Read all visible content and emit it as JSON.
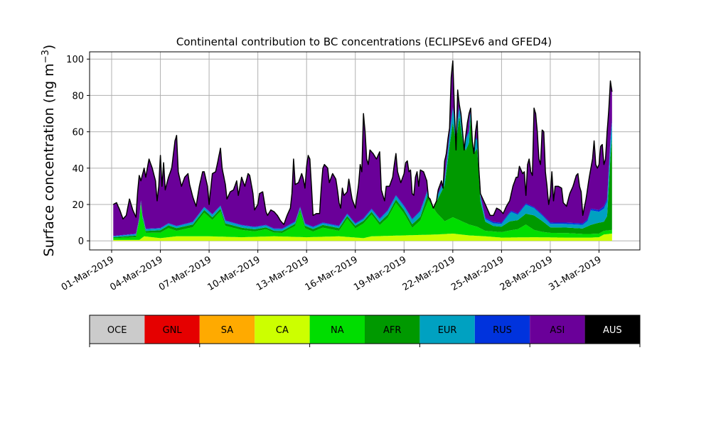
{
  "chart_data": {
    "type": "area",
    "stacked": true,
    "title": "Continental contribution to BC concentrations (ECLIPSEv6 and GFED4)",
    "ylabel_main": "Surface concentration (ng m",
    "ylabel_sup": "−3",
    "ylabel_close": ")",
    "xlabel": "",
    "ylim": [
      -5,
      104
    ],
    "yticks": [
      0,
      20,
      40,
      60,
      80,
      100
    ],
    "x_start": "2019-03-01",
    "x_end": "2019-04-01",
    "xtick_labels": [
      "01-Mar-2019",
      "04-Mar-2019",
      "07-Mar-2019",
      "10-Mar-2019",
      "13-Mar-2019",
      "16-Mar-2019",
      "19-Mar-2019",
      "22-Mar-2019",
      "25-Mar-2019",
      "28-Mar-2019",
      "31-Mar-2019"
    ],
    "xtick_days": [
      0,
      3,
      6,
      9,
      12,
      15,
      18,
      21,
      24,
      27,
      30
    ],
    "grid": true,
    "series_names": [
      "OCE",
      "GNL",
      "SA",
      "CA",
      "NA",
      "AFR",
      "EUR",
      "RUS",
      "ASI",
      "AUS"
    ],
    "series_colors": [
      "#cbcbcb",
      "#e50000",
      "#ffaa00",
      "#ccff00",
      "#00dd00",
      "#009900",
      "#00a1c1",
      "#0033dd",
      "#6a0099",
      "#000000"
    ],
    "series_text_colors": [
      "#000000",
      "#000000",
      "#000000",
      "#000000",
      "#000000",
      "#000000",
      "#000000",
      "#000000",
      "#000000",
      "#ffffff"
    ],
    "total_keyframes": [
      [
        0.1,
        20
      ],
      [
        0.3,
        21
      ],
      [
        0.5,
        17
      ],
      [
        0.7,
        12
      ],
      [
        0.9,
        14
      ],
      [
        1.1,
        23
      ],
      [
        1.3,
        17
      ],
      [
        1.5,
        13
      ],
      [
        1.6,
        27
      ],
      [
        1.7,
        36
      ],
      [
        1.8,
        33
      ],
      [
        2.0,
        40
      ],
      [
        2.1,
        35
      ],
      [
        2.3,
        45
      ],
      [
        2.5,
        40
      ],
      [
        2.7,
        33
      ],
      [
        2.8,
        22
      ],
      [
        2.9,
        30
      ],
      [
        3.0,
        47
      ],
      [
        3.1,
        30
      ],
      [
        3.2,
        43
      ],
      [
        3.3,
        28
      ],
      [
        3.5,
        35
      ],
      [
        3.7,
        40
      ],
      [
        3.9,
        55
      ],
      [
        4.0,
        58
      ],
      [
        4.1,
        38
      ],
      [
        4.3,
        30
      ],
      [
        4.5,
        35
      ],
      [
        4.7,
        37
      ],
      [
        4.8,
        31
      ],
      [
        5.0,
        24
      ],
      [
        5.2,
        19
      ],
      [
        5.4,
        30
      ],
      [
        5.6,
        38
      ],
      [
        5.7,
        38
      ],
      [
        5.9,
        30
      ],
      [
        6.0,
        20
      ],
      [
        6.2,
        37
      ],
      [
        6.4,
        38
      ],
      [
        6.5,
        42
      ],
      [
        6.7,
        51
      ],
      [
        6.8,
        40
      ],
      [
        7.0,
        31
      ],
      [
        7.1,
        23
      ],
      [
        7.3,
        27
      ],
      [
        7.5,
        28
      ],
      [
        7.7,
        33
      ],
      [
        7.8,
        25
      ],
      [
        8.0,
        35
      ],
      [
        8.2,
        30
      ],
      [
        8.4,
        37
      ],
      [
        8.5,
        36
      ],
      [
        8.7,
        26
      ],
      [
        8.8,
        17
      ],
      [
        9.0,
        20
      ],
      [
        9.1,
        26
      ],
      [
        9.3,
        27
      ],
      [
        9.5,
        16
      ],
      [
        9.6,
        14
      ],
      [
        9.8,
        17
      ],
      [
        10.0,
        16
      ],
      [
        10.2,
        14
      ],
      [
        10.4,
        11
      ],
      [
        10.6,
        9
      ],
      [
        10.8,
        14
      ],
      [
        11.0,
        18
      ],
      [
        11.1,
        26
      ],
      [
        11.2,
        45
      ],
      [
        11.3,
        31
      ],
      [
        11.5,
        32
      ],
      [
        11.7,
        37
      ],
      [
        11.8,
        34
      ],
      [
        11.9,
        29
      ],
      [
        12.0,
        41
      ],
      [
        12.1,
        47
      ],
      [
        12.2,
        45
      ],
      [
        12.3,
        30
      ],
      [
        12.4,
        14
      ],
      [
        12.6,
        15
      ],
      [
        12.8,
        15
      ],
      [
        12.9,
        29
      ],
      [
        13.0,
        40
      ],
      [
        13.1,
        42
      ],
      [
        13.3,
        40
      ],
      [
        13.4,
        32
      ],
      [
        13.6,
        37
      ],
      [
        13.8,
        34
      ],
      [
        13.9,
        28
      ],
      [
        14.0,
        21
      ],
      [
        14.1,
        18
      ],
      [
        14.2,
        29
      ],
      [
        14.3,
        25
      ],
      [
        14.5,
        27
      ],
      [
        14.6,
        34
      ],
      [
        14.8,
        23
      ],
      [
        15.0,
        18
      ],
      [
        15.2,
        31
      ],
      [
        15.3,
        42
      ],
      [
        15.4,
        38
      ],
      [
        15.5,
        70
      ],
      [
        15.6,
        60
      ],
      [
        15.7,
        45
      ],
      [
        15.8,
        42
      ],
      [
        15.9,
        50
      ],
      [
        16.1,
        48
      ],
      [
        16.3,
        45
      ],
      [
        16.5,
        49
      ],
      [
        16.6,
        28
      ],
      [
        16.8,
        22
      ],
      [
        16.9,
        30
      ],
      [
        17.1,
        30
      ],
      [
        17.3,
        35
      ],
      [
        17.4,
        42
      ],
      [
        17.5,
        48
      ],
      [
        17.6,
        38
      ],
      [
        17.8,
        32
      ],
      [
        18.0,
        37
      ],
      [
        18.1,
        43
      ],
      [
        18.2,
        44
      ],
      [
        18.3,
        38
      ],
      [
        18.4,
        39
      ],
      [
        18.5,
        26
      ],
      [
        18.6,
        25
      ],
      [
        18.7,
        35
      ],
      [
        18.8,
        38
      ],
      [
        18.9,
        30
      ],
      [
        19.0,
        39
      ],
      [
        19.2,
        38
      ],
      [
        19.4,
        33
      ],
      [
        19.5,
        24
      ],
      [
        19.6,
        23
      ],
      [
        19.8,
        18
      ],
      [
        20.0,
        22
      ],
      [
        20.1,
        28
      ],
      [
        20.3,
        33
      ],
      [
        20.4,
        29
      ],
      [
        20.5,
        44
      ],
      [
        20.6,
        48
      ],
      [
        20.7,
        56
      ],
      [
        20.8,
        62
      ],
      [
        20.9,
        90
      ],
      [
        21.0,
        99
      ],
      [
        21.1,
        72
      ],
      [
        21.2,
        50
      ],
      [
        21.3,
        83
      ],
      [
        21.4,
        75
      ],
      [
        21.5,
        70
      ],
      [
        21.6,
        60
      ],
      [
        21.7,
        50
      ],
      [
        21.8,
        58
      ],
      [
        21.9,
        65
      ],
      [
        22.0,
        70
      ],
      [
        22.1,
        73
      ],
      [
        22.2,
        55
      ],
      [
        22.3,
        48
      ],
      [
        22.4,
        60
      ],
      [
        22.5,
        66
      ],
      [
        22.6,
        40
      ],
      [
        22.7,
        26
      ],
      [
        22.9,
        22
      ],
      [
        23.1,
        18
      ],
      [
        23.3,
        14
      ],
      [
        23.5,
        14
      ],
      [
        23.7,
        18
      ],
      [
        23.9,
        17
      ],
      [
        24.1,
        15
      ],
      [
        24.3,
        19
      ],
      [
        24.5,
        22
      ],
      [
        24.7,
        30
      ],
      [
        24.9,
        35
      ],
      [
        25.0,
        35
      ],
      [
        25.1,
        41
      ],
      [
        25.3,
        37
      ],
      [
        25.4,
        38
      ],
      [
        25.5,
        25
      ],
      [
        25.6,
        42
      ],
      [
        25.7,
        45
      ],
      [
        25.8,
        38
      ],
      [
        25.9,
        36
      ],
      [
        26.0,
        73
      ],
      [
        26.1,
        70
      ],
      [
        26.2,
        60
      ],
      [
        26.3,
        45
      ],
      [
        26.4,
        42
      ],
      [
        26.5,
        61
      ],
      [
        26.6,
        60
      ],
      [
        26.7,
        38
      ],
      [
        26.8,
        30
      ],
      [
        26.9,
        20
      ],
      [
        27.0,
        25
      ],
      [
        27.1,
        38
      ],
      [
        27.2,
        22
      ],
      [
        27.3,
        30
      ],
      [
        27.5,
        30
      ],
      [
        27.7,
        29
      ],
      [
        27.8,
        21
      ],
      [
        28.0,
        19
      ],
      [
        28.2,
        26
      ],
      [
        28.4,
        30
      ],
      [
        28.6,
        36
      ],
      [
        28.7,
        37
      ],
      [
        28.8,
        30
      ],
      [
        28.9,
        27
      ],
      [
        29.0,
        14
      ],
      [
        29.2,
        23
      ],
      [
        29.4,
        35
      ],
      [
        29.6,
        45
      ],
      [
        29.7,
        55
      ],
      [
        29.8,
        42
      ],
      [
        29.9,
        40
      ],
      [
        30.0,
        42
      ],
      [
        30.1,
        52
      ],
      [
        30.2,
        53
      ],
      [
        30.3,
        42
      ],
      [
        30.4,
        45
      ],
      [
        30.5,
        60
      ],
      [
        30.6,
        72
      ],
      [
        30.7,
        88
      ],
      [
        30.8,
        82
      ]
    ],
    "component_keyframes": {
      "CA": [
        [
          0.1,
          0.5
        ],
        [
          1.7,
          0.5
        ],
        [
          2.0,
          2.5
        ],
        [
          3.0,
          1.5
        ],
        [
          4.0,
          2.5
        ],
        [
          6.0,
          2.5
        ],
        [
          8.0,
          2.0
        ],
        [
          10.0,
          2.5
        ],
        [
          12.0,
          2.0
        ],
        [
          14.0,
          2.5
        ],
        [
          15.5,
          1.5
        ],
        [
          16.0,
          2.5
        ],
        [
          18.0,
          3.0
        ],
        [
          20.0,
          3.5
        ],
        [
          21.0,
          4.0
        ],
        [
          22.0,
          3.0
        ],
        [
          23.0,
          2.5
        ],
        [
          24.0,
          1.8
        ],
        [
          26.0,
          2.0
        ],
        [
          28.0,
          1.8
        ],
        [
          29.5,
          1.8
        ],
        [
          30.0,
          2.0
        ],
        [
          30.3,
          3.5
        ],
        [
          30.8,
          4.0
        ]
      ],
      "NA": [
        [
          0.1,
          1.0
        ],
        [
          1.5,
          1.5
        ],
        [
          1.7,
          10.0
        ],
        [
          1.8,
          19.0
        ],
        [
          1.9,
          10.0
        ],
        [
          2.1,
          2.0
        ],
        [
          3.0,
          3.0
        ],
        [
          3.5,
          5.0
        ],
        [
          4.0,
          3.0
        ],
        [
          5.0,
          5.0
        ],
        [
          5.7,
          13.0
        ],
        [
          6.2,
          9.0
        ],
        [
          6.7,
          14.0
        ],
        [
          7.0,
          6.0
        ],
        [
          8.0,
          4.0
        ],
        [
          8.8,
          3.0
        ],
        [
          9.5,
          4.0
        ],
        [
          10.0,
          2.0
        ],
        [
          10.5,
          2.0
        ],
        [
          11.3,
          6.0
        ],
        [
          11.6,
          14.0
        ],
        [
          11.9,
          5.0
        ],
        [
          12.4,
          3.0
        ],
        [
          13.0,
          5.0
        ],
        [
          14.0,
          3.0
        ],
        [
          14.5,
          10.0
        ],
        [
          15.0,
          5.0
        ],
        [
          15.5,
          8.0
        ],
        [
          16.0,
          12.0
        ],
        [
          16.5,
          6.0
        ],
        [
          17.0,
          10.0
        ],
        [
          17.5,
          18.0
        ],
        [
          18.0,
          12.0
        ],
        [
          18.5,
          4.0
        ],
        [
          19.0,
          8.0
        ],
        [
          19.5,
          19.0
        ],
        [
          20.0,
          12.0
        ],
        [
          20.5,
          7.0
        ],
        [
          21.0,
          9.0
        ],
        [
          22.0,
          6.0
        ],
        [
          22.5,
          5.0
        ],
        [
          23.0,
          3.0
        ],
        [
          24.0,
          3.0
        ],
        [
          24.6,
          4.0
        ],
        [
          25.0,
          4.5
        ],
        [
          25.5,
          7.0
        ],
        [
          26.0,
          4.0
        ],
        [
          26.5,
          3.0
        ],
        [
          27.0,
          2.5
        ],
        [
          27.5,
          2.5
        ],
        [
          28.0,
          2.5
        ],
        [
          29.0,
          2.0
        ],
        [
          30.0,
          2.0
        ],
        [
          30.5,
          2.0
        ],
        [
          30.8,
          2.0
        ]
      ],
      "AFR": [
        [
          0.1,
          0.5
        ],
        [
          2.0,
          1.0
        ],
        [
          3.5,
          1.5
        ],
        [
          6.0,
          1.5
        ],
        [
          10.0,
          1.0
        ],
        [
          13.0,
          1.5
        ],
        [
          16.0,
          1.5
        ],
        [
          18.0,
          2.0
        ],
        [
          19.0,
          2.0
        ],
        [
          20.0,
          6.0
        ],
        [
          20.5,
          20.0
        ],
        [
          20.8,
          40.0
        ],
        [
          21.0,
          52.0
        ],
        [
          21.2,
          42.0
        ],
        [
          21.4,
          57.0
        ],
        [
          21.6,
          45.0
        ],
        [
          21.8,
          40.0
        ],
        [
          22.0,
          45.0
        ],
        [
          22.1,
          60.0
        ],
        [
          22.3,
          40.0
        ],
        [
          22.5,
          43.0
        ],
        [
          22.7,
          15.0
        ],
        [
          23.0,
          5.0
        ],
        [
          23.5,
          3.0
        ],
        [
          24.0,
          3.0
        ],
        [
          24.5,
          5.0
        ],
        [
          25.0,
          5.0
        ],
        [
          25.5,
          6.0
        ],
        [
          26.0,
          8.0
        ],
        [
          26.5,
          6.0
        ],
        [
          27.0,
          3.0
        ],
        [
          28.0,
          3.0
        ],
        [
          29.0,
          3.0
        ],
        [
          29.5,
          5.0
        ],
        [
          30.0,
          6.0
        ],
        [
          30.3,
          5.0
        ],
        [
          30.5,
          8.0
        ],
        [
          30.7,
          40.0
        ],
        [
          30.8,
          50.0
        ]
      ],
      "EUR": [
        [
          0.1,
          0.5
        ],
        [
          2.0,
          1.0
        ],
        [
          4.0,
          1.0
        ],
        [
          6.0,
          1.5
        ],
        [
          10.0,
          1.0
        ],
        [
          13.0,
          1.0
        ],
        [
          15.5,
          1.0
        ],
        [
          17.0,
          2.0
        ],
        [
          18.0,
          2.0
        ],
        [
          19.0,
          3.0
        ],
        [
          20.0,
          2.0
        ],
        [
          20.5,
          3.0
        ],
        [
          21.0,
          8.0
        ],
        [
          21.3,
          5.0
        ],
        [
          22.0,
          6.0
        ],
        [
          22.3,
          8.0
        ],
        [
          22.6,
          3.0
        ],
        [
          23.0,
          1.5
        ],
        [
          24.0,
          1.5
        ],
        [
          24.6,
          5.0
        ],
        [
          25.0,
          3.0
        ],
        [
          25.5,
          5.0
        ],
        [
          26.0,
          4.0
        ],
        [
          27.0,
          2.0
        ],
        [
          28.0,
          2.0
        ],
        [
          29.0,
          2.0
        ],
        [
          29.3,
          3.0
        ],
        [
          29.5,
          8.0
        ],
        [
          30.0,
          6.0
        ],
        [
          30.5,
          8.0
        ],
        [
          30.8,
          9.0
        ]
      ],
      "RUS": [
        [
          0.1,
          0.2
        ],
        [
          10.0,
          0.3
        ],
        [
          20.0,
          0.5
        ],
        [
          22.0,
          0.8
        ],
        [
          26.0,
          0.6
        ],
        [
          29.0,
          0.8
        ],
        [
          30.0,
          1.0
        ],
        [
          30.5,
          1.5
        ],
        [
          30.8,
          1.5
        ]
      ],
      "AUS": [
        [
          0.1,
          0.2
        ],
        [
          15.0,
          0.2
        ],
        [
          30.8,
          0.2
        ]
      ]
    }
  }
}
